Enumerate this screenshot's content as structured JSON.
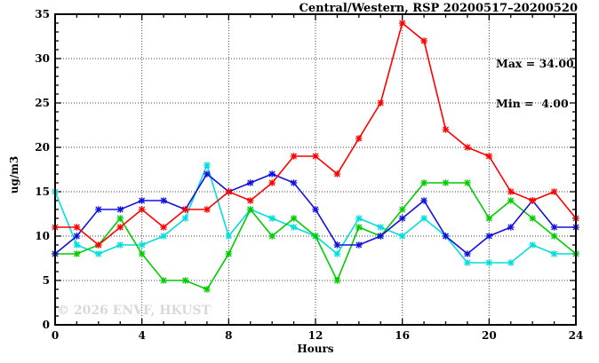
{
  "header": {
    "title": "Central/Western, RSP 20200517–20200520"
  },
  "annotations": {
    "max_label": "Max = 34.00",
    "min_label": "Min =  4.00",
    "watermark": "© 2026 ENVF, HKUST"
  },
  "chart_data": {
    "type": "line",
    "title": "Central/Western, RSP 20200517–20200520",
    "xlabel": "Hours",
    "ylabel": "ug/m3",
    "xlim": [
      0,
      24
    ],
    "ylim": [
      0,
      35
    ],
    "xticks_major": [
      0,
      4,
      8,
      12,
      16,
      20,
      24
    ],
    "yticks_major": [
      0,
      5,
      10,
      15,
      20,
      25,
      30,
      35
    ],
    "x_minor_step": 1,
    "y_minor_step": 1,
    "grid": "dotted-at-major-ticks-mirrored-frame",
    "legend_position": "none",
    "max_value": 34.0,
    "min_value": 4.0,
    "x": [
      0,
      1,
      2,
      3,
      4,
      5,
      6,
      7,
      8,
      9,
      10,
      11,
      12,
      13,
      14,
      15,
      16,
      17,
      18,
      19,
      20,
      21,
      22,
      23,
      24
    ],
    "series": [
      {
        "name": "cyan-line",
        "color": "#00dddd",
        "values": [
          15,
          9,
          8,
          9,
          9,
          10,
          12,
          18,
          10,
          13,
          12,
          11,
          10,
          8,
          12,
          11,
          10,
          12,
          10,
          7,
          7,
          7,
          9,
          8,
          8
        ]
      },
      {
        "name": "green-line",
        "color": "#00cc00",
        "values": [
          8,
          8,
          9,
          12,
          8,
          5,
          5,
          4,
          8,
          13,
          10,
          12,
          10,
          5,
          11,
          10,
          13,
          16,
          16,
          16,
          12,
          14,
          12,
          10,
          8
        ]
      },
      {
        "name": "blue-line",
        "color": "#1111dd",
        "values": [
          8,
          10,
          13,
          13,
          14,
          14,
          13,
          17,
          15,
          16,
          17,
          16,
          13,
          9,
          9,
          10,
          12,
          14,
          10,
          8,
          10,
          11,
          14,
          11,
          11
        ]
      },
      {
        "name": "red-line",
        "color": "#ff0000",
        "values": [
          11,
          11,
          9,
          11,
          13,
          11,
          13,
          13,
          15,
          14,
          16,
          19,
          19,
          17,
          21,
          25,
          34,
          32,
          22,
          20,
          19,
          15,
          14,
          15,
          12
        ]
      }
    ]
  }
}
